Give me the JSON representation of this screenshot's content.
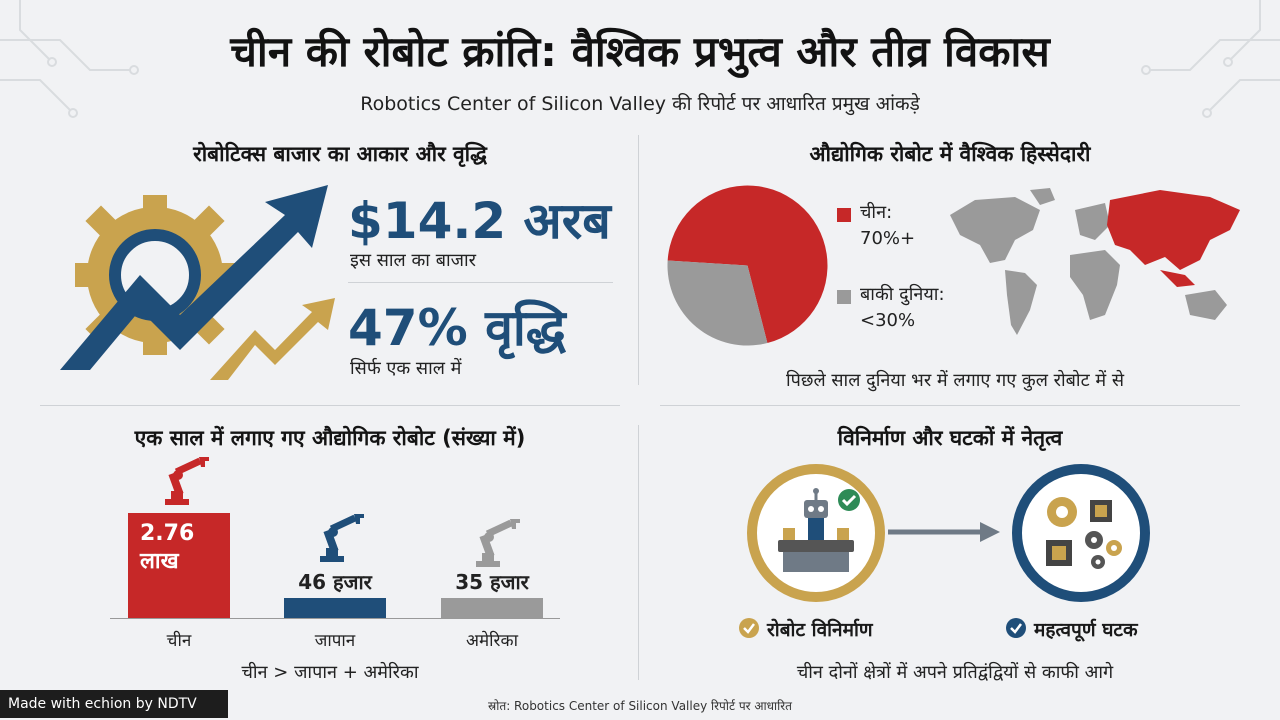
{
  "header": {
    "title": "चीन की रोबोट क्रांति: वैश्विक प्रभुत्व और तीव्र विकास",
    "subtitle": "Robotics Center of Silicon Valley की रिपोर्ट पर आधारित प्रमुख आंकड़े"
  },
  "market": {
    "section_title": "रोबोटिक्स बाजार का आकार और वृद्धि",
    "size_value": "$14.2 अरब",
    "size_caption": "इस साल का बाजार",
    "growth_value": "47% वृद्धि",
    "growth_caption": "सिर्फ एक साल में"
  },
  "share": {
    "section_title": "औद्योगिक रोबोट में वैश्विक हिस्सेदारी",
    "legend": [
      {
        "label": "चीन:",
        "value": "70%+"
      },
      {
        "label": "बाकी दुनिया:",
        "value": "<30%"
      }
    ],
    "caption": "पिछले साल दुनिया भर में लगाए गए कुल रोबोट में से"
  },
  "chart_data": [
    {
      "type": "pie",
      "title": "औद्योगिक रोबोट में वैश्विक हिस्सेदारी",
      "slices": [
        {
          "name": "चीन",
          "value": 70,
          "color": "#c62828"
        },
        {
          "name": "बाकी दुनिया",
          "value": 30,
          "color": "#9a9a9a"
        }
      ]
    },
    {
      "type": "bar",
      "title": "एक साल में लगाए गए औद्योगिक रोबोट (संख्या में)",
      "categories": [
        "चीन",
        "जापान",
        "अमेरिका"
      ],
      "values": [
        276000,
        46000,
        35000
      ],
      "value_labels": [
        "2.76 लाख",
        "46 हजार",
        "35 हजार"
      ],
      "colors": [
        "#c62828",
        "#1f4e79",
        "#9a9a9a"
      ],
      "footnote": "चीन > जापान + अमेरिका"
    }
  ],
  "manufacturing": {
    "section_title": "विनिर्माण और घटकों में नेतृत्व",
    "item1": "रोबोट विनिर्माण",
    "item2": "महत्वपूर्ण घटक",
    "caption": "चीन दोनों क्षेत्रों में अपने प्रतिद्वंद्वियों से काफी आगे"
  },
  "footer": {
    "badge": "Made with echion by NDTV",
    "source": "स्रोत: Robotics Center of Silicon Valley रिपोर्ट पर आधारित"
  },
  "colors": {
    "red": "#c62828",
    "navy": "#1f4e79",
    "gold": "#c9a34e",
    "gray": "#9a9a9a"
  }
}
